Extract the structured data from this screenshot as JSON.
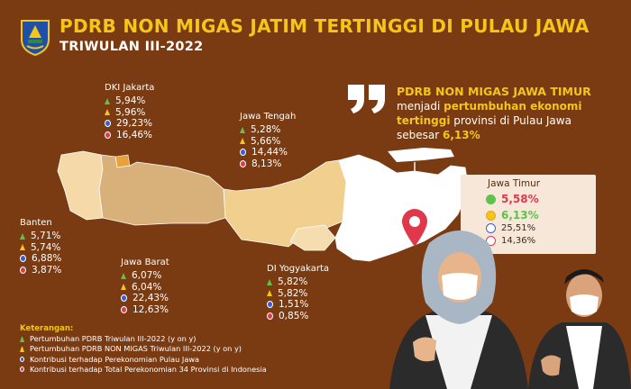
{
  "header": {
    "title": "PDRB NON MIGAS JATIM TERTINGGI DI PULAU JAWA",
    "subtitle": "TRIWULAN III-2022"
  },
  "quote": {
    "line1": "PDRB NON MIGAS JAWA TIMUR",
    "line2_a": "menjadi ",
    "line2_b": "pertumbuhan ekonomi",
    "line3_a": "tertinggi",
    "line3_b": " provinsi di Pulau Jawa",
    "line4_a": "sebesar ",
    "line4_b": "6,13%"
  },
  "regions": {
    "dki": {
      "name": "DKI Jakarta",
      "v1": "5,94%",
      "v2": "5,96%",
      "v3": "29,23%",
      "v4": "16,46%"
    },
    "jateng": {
      "name": "Jawa Tengah",
      "v1": "5,28%",
      "v2": "5,66%",
      "v3": "14,44%",
      "v4": "8,13%"
    },
    "banten": {
      "name": "Banten",
      "v1": "5,71%",
      "v2": "5,74%",
      "v3": "6,88%",
      "v4": "3,87%"
    },
    "jabar": {
      "name": "Jawa Barat",
      "v1": "6,07%",
      "v2": "6,04%",
      "v3": "22,43%",
      "v4": "12,63%"
    },
    "diy": {
      "name": "DI Yogyakarta",
      "v1": "5,82%",
      "v2": "5,82%",
      "v3": "1,51%",
      "v4": "0,85%"
    },
    "jatim": {
      "name": "Jawa Timur",
      "v1": "5,58%",
      "v2": "6,13%",
      "v3": "25,51%",
      "v4": "14,36%"
    }
  },
  "legend": {
    "title": "Keterangan:",
    "items": [
      "Pertumbuhan PDRB Triwulan III-2022 (y on y)",
      "Pertumbuhan PDRB NON MIGAS Triwulan III-2022 (y on y)",
      "Kontribusi terhadap Perekonomian Pulau Jawa",
      "Kontribusi terhadap Total Perekonomian 34 Provinsi di Indonesia"
    ]
  },
  "colors": {
    "background": "#7a3b12",
    "accent": "#f5c518",
    "growth_pdrb": "#5ec24c",
    "growth_nonmigas": "#f5c518",
    "contrib_java": "#3b5bd9",
    "contrib_indonesia": "#e0384b"
  },
  "icons": [
    "province-emblem-icon",
    "quote-icon",
    "map-pin-icon",
    "up-arrow-icon",
    "drop-icon"
  ]
}
